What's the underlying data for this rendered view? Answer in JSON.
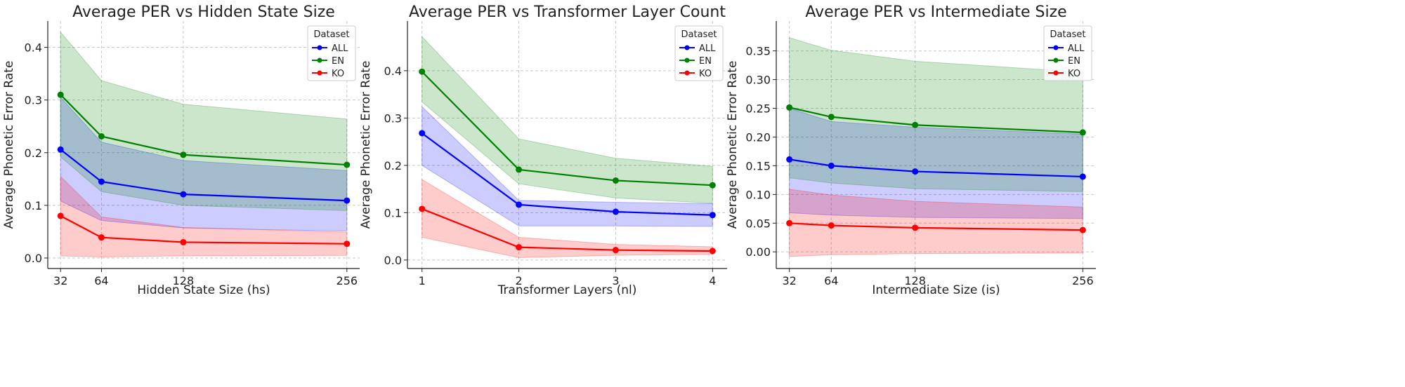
{
  "chart_data": [
    {
      "type": "line",
      "title": "Average PER vs Hidden State Size",
      "xlabel": "Hidden State Size (hs)",
      "ylabel": "Average Phonetic Error Rate",
      "x": [
        32,
        64,
        128,
        256
      ],
      "xticks": [
        "32",
        "64",
        "128",
        "256"
      ],
      "yticks": [
        "0.0",
        "0.1",
        "0.2",
        "0.3",
        "0.4"
      ],
      "ytick_values": [
        0.0,
        0.1,
        0.2,
        0.3,
        0.4
      ],
      "xlim": [
        22,
        266
      ],
      "ylim": [
        -0.02,
        0.45
      ],
      "grid": true,
      "legend": {
        "title": "Dataset",
        "placement": "top-right"
      },
      "series": [
        {
          "name": "ALL",
          "color": "#0000ff",
          "values": [
            0.206,
            0.145,
            0.121,
            0.109
          ],
          "upper": [
            0.305,
            0.22,
            0.185,
            0.166
          ],
          "lower": [
            0.108,
            0.071,
            0.057,
            0.051
          ]
        },
        {
          "name": "EN",
          "color": "#008000",
          "values": [
            0.31,
            0.231,
            0.196,
            0.177
          ],
          "upper": [
            0.429,
            0.337,
            0.292,
            0.264
          ],
          "lower": [
            0.192,
            0.126,
            0.1,
            0.09
          ]
        },
        {
          "name": "KO",
          "color": "#ff0000",
          "values": [
            0.08,
            0.039,
            0.03,
            0.027
          ],
          "upper": [
            0.155,
            0.078,
            0.058,
            0.049
          ],
          "lower": [
            0.004,
            0.002,
            0.004,
            0.005
          ]
        }
      ]
    },
    {
      "type": "line",
      "title": "Average PER vs Transformer Layer Count",
      "xlabel": "Transformer Layers (nl)",
      "ylabel": "Average Phonetic Error Rate",
      "x": [
        1,
        2,
        3,
        4
      ],
      "xticks": [
        "1",
        "2",
        "3",
        "4"
      ],
      "yticks": [
        "0.0",
        "0.1",
        "0.2",
        "0.3",
        "0.4"
      ],
      "ytick_values": [
        0.0,
        0.1,
        0.2,
        0.3,
        0.4
      ],
      "xlim": [
        0.85,
        4.15
      ],
      "ylim": [
        -0.018,
        0.505
      ],
      "grid": true,
      "legend": {
        "title": "Dataset",
        "placement": "top-right"
      },
      "series": [
        {
          "name": "ALL",
          "color": "#0000ff",
          "values": [
            0.268,
            0.117,
            0.102,
            0.095
          ],
          "upper": [
            0.324,
            0.126,
            0.122,
            0.119
          ],
          "lower": [
            0.2,
            0.072,
            0.072,
            0.071
          ]
        },
        {
          "name": "EN",
          "color": "#008000",
          "values": [
            0.398,
            0.191,
            0.168,
            0.158
          ],
          "upper": [
            0.472,
            0.256,
            0.215,
            0.198
          ],
          "lower": [
            0.334,
            0.161,
            0.131,
            0.12
          ]
        },
        {
          "name": "KO",
          "color": "#ff0000",
          "values": [
            0.108,
            0.027,
            0.021,
            0.019
          ],
          "upper": [
            0.17,
            0.048,
            0.033,
            0.028
          ],
          "lower": [
            0.048,
            0.005,
            0.01,
            0.012
          ]
        }
      ]
    },
    {
      "type": "line",
      "title": "Average PER vs Intermediate Size",
      "xlabel": "Intermediate Size (is)",
      "ylabel": "Average Phonetic Error Rate",
      "x": [
        32,
        64,
        128,
        256
      ],
      "xticks": [
        "32",
        "64",
        "128",
        "256"
      ],
      "yticks": [
        "0.00",
        "0.05",
        "0.10",
        "0.15",
        "0.20",
        "0.25",
        "0.30",
        "0.35"
      ],
      "ytick_values": [
        0.0,
        0.05,
        0.1,
        0.15,
        0.2,
        0.25,
        0.3,
        0.35
      ],
      "xlim": [
        22,
        266
      ],
      "ylim": [
        -0.029,
        0.402
      ],
      "grid": true,
      "legend": {
        "title": "Dataset",
        "placement": "top-right"
      },
      "series": [
        {
          "name": "ALL",
          "color": "#0000ff",
          "values": [
            0.161,
            0.15,
            0.14,
            0.131
          ],
          "upper": [
            0.25,
            0.227,
            0.217,
            0.205
          ],
          "lower": [
            0.068,
            0.064,
            0.06,
            0.058
          ]
        },
        {
          "name": "EN",
          "color": "#008000",
          "values": [
            0.2515,
            0.235,
            0.221,
            0.208
          ],
          "upper": [
            0.373,
            0.351,
            0.332,
            0.313
          ],
          "lower": [
            0.129,
            0.12,
            0.11,
            0.105
          ]
        },
        {
          "name": "KO",
          "color": "#ff0000",
          "values": [
            0.05,
            0.046,
            0.042,
            0.038
          ],
          "upper": [
            0.109,
            0.099,
            0.088,
            0.078
          ],
          "lower": [
            -0.008,
            -0.005,
            -0.003,
            -0.002
          ]
        }
      ]
    }
  ]
}
